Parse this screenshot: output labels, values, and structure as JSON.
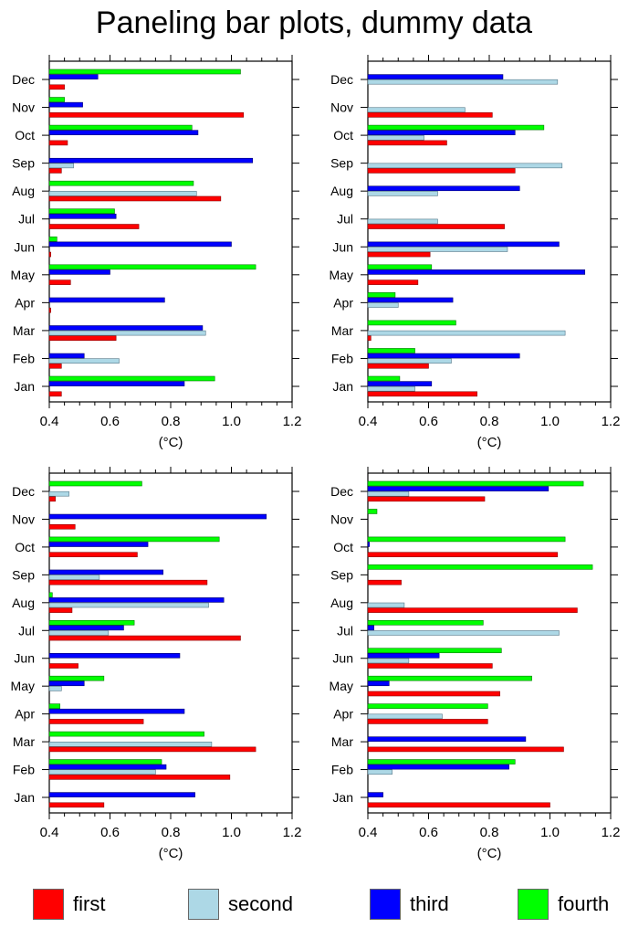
{
  "chart_data": {
    "type": "bar",
    "orientation": "horizontal",
    "title": "Paneling bar plots, dummy data",
    "categories": [
      "Jan",
      "Feb",
      "Mar",
      "Apr",
      "May",
      "Jun",
      "Jul",
      "Aug",
      "Sep",
      "Oct",
      "Nov",
      "Dec"
    ],
    "xlim": [
      0.4,
      1.2
    ],
    "xticks": [
      "0.4",
      "0.6",
      "0.8",
      "1.0",
      "1.2"
    ],
    "xlabel": "(°C)",
    "legend": {
      "placement": "bottom",
      "entries": [
        {
          "name": "first",
          "color": "#ff0000"
        },
        {
          "name": "second",
          "color": "#add8e6"
        },
        {
          "name": "third",
          "color": "#0000ff"
        },
        {
          "name": "fourth",
          "color": "#00ff00"
        }
      ]
    },
    "panels": [
      {
        "position": "top-left",
        "series": [
          {
            "name": "first",
            "values": [
              0.44,
              0.44,
              0.62,
              0.405,
              0.47,
              0.405,
              0.695,
              0.965,
              0.44,
              0.46,
              1.04,
              0.45
            ]
          },
          {
            "name": "second",
            "values": [
              null,
              0.63,
              0.915,
              null,
              null,
              null,
              null,
              0.885,
              0.48,
              null,
              null,
              null
            ]
          },
          {
            "name": "third",
            "values": [
              0.845,
              0.515,
              0.905,
              0.78,
              0.6,
              1.0,
              0.62,
              null,
              1.07,
              0.89,
              0.51,
              0.56
            ]
          },
          {
            "name": "fourth",
            "values": [
              0.945,
              null,
              null,
              null,
              1.08,
              0.425,
              0.615,
              0.875,
              null,
              0.87,
              0.45,
              1.03
            ]
          }
        ]
      },
      {
        "position": "top-right",
        "series": [
          {
            "name": "first",
            "values": [
              0.76,
              0.6,
              0.41,
              null,
              0.565,
              0.605,
              0.85,
              null,
              0.885,
              0.66,
              0.81,
              null
            ]
          },
          {
            "name": "second",
            "values": [
              0.555,
              0.675,
              1.05,
              0.5,
              null,
              0.86,
              0.63,
              0.63,
              1.04,
              0.585,
              0.72,
              1.025
            ]
          },
          {
            "name": "third",
            "values": [
              0.61,
              0.9,
              null,
              0.68,
              1.115,
              1.03,
              null,
              0.9,
              null,
              0.885,
              null,
              0.845
            ]
          },
          {
            "name": "fourth",
            "values": [
              0.505,
              0.555,
              0.69,
              0.49,
              0.61,
              null,
              null,
              null,
              null,
              0.98,
              null,
              null
            ]
          }
        ]
      },
      {
        "position": "bottom-left",
        "series": [
          {
            "name": "first",
            "values": [
              0.58,
              0.995,
              1.08,
              0.71,
              null,
              0.495,
              1.03,
              0.475,
              0.92,
              0.69,
              0.485,
              0.42
            ]
          },
          {
            "name": "second",
            "values": [
              null,
              0.75,
              0.935,
              null,
              0.44,
              null,
              0.595,
              0.925,
              0.565,
              null,
              null,
              0.465
            ]
          },
          {
            "name": "third",
            "values": [
              0.88,
              0.785,
              null,
              0.845,
              0.515,
              0.83,
              0.645,
              0.975,
              0.775,
              0.725,
              1.115,
              null
            ]
          },
          {
            "name": "fourth",
            "values": [
              null,
              0.77,
              0.91,
              0.435,
              0.58,
              null,
              0.68,
              0.41,
              null,
              0.96,
              null,
              0.705
            ]
          }
        ]
      },
      {
        "position": "bottom-right",
        "series": [
          {
            "name": "first",
            "values": [
              1.0,
              null,
              1.045,
              0.795,
              0.835,
              0.81,
              null,
              1.09,
              0.51,
              1.025,
              null,
              0.785
            ]
          },
          {
            "name": "second",
            "values": [
              null,
              0.48,
              null,
              0.645,
              null,
              0.535,
              1.03,
              0.52,
              null,
              null,
              null,
              0.535
            ]
          },
          {
            "name": "third",
            "values": [
              0.45,
              0.865,
              0.92,
              null,
              0.47,
              0.635,
              0.42,
              null,
              null,
              0.405,
              null,
              0.995
            ]
          },
          {
            "name": "fourth",
            "values": [
              null,
              0.885,
              null,
              0.795,
              0.94,
              0.84,
              0.78,
              null,
              1.14,
              1.05,
              0.43,
              1.11
            ]
          }
        ]
      }
    ]
  }
}
